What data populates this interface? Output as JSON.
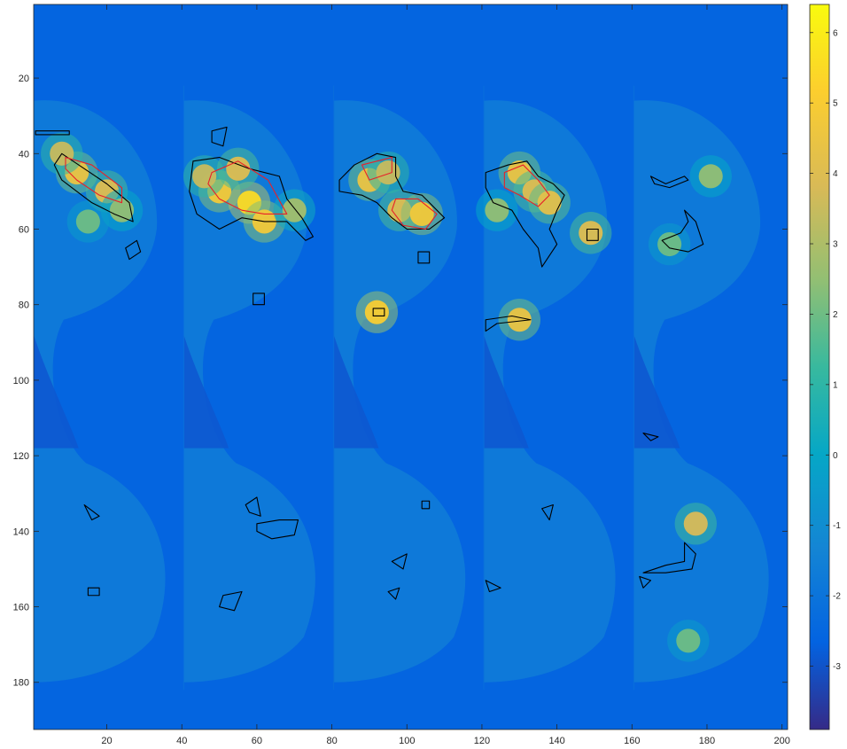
{
  "chart_data": {
    "type": "heatmap",
    "title": "",
    "xlabel": "",
    "ylabel": "",
    "xlim": [
      0.5,
      201.5
    ],
    "ylim": [
      0.5,
      192.5
    ],
    "y_reversed": true,
    "colormap": "parula",
    "xticks": [
      20,
      40,
      60,
      80,
      100,
      120,
      140,
      160,
      180,
      200
    ],
    "yticks": [
      20,
      40,
      60,
      80,
      100,
      120,
      140,
      160,
      180
    ],
    "colorbar": {
      "clim": [
        -3.9,
        6.4
      ],
      "ticks": [
        -3,
        -2,
        -1,
        0,
        1,
        2,
        3,
        4,
        5,
        6
      ]
    },
    "grid": false,
    "panels": [
      {
        "x0": 1,
        "x1": 40,
        "hotspots": [
          [
            12,
            45,
            4.5
          ],
          [
            20,
            50,
            4.0
          ],
          [
            8,
            40,
            3.5
          ],
          [
            24,
            55,
            2.5
          ],
          [
            15,
            58,
            2.0
          ]
        ],
        "black_contours": [
          [
            [
              1,
              34
            ],
            [
              10,
              34
            ],
            [
              10,
              35
            ],
            [
              1,
              35
            ]
          ],
          [
            [
              8,
              40
            ],
            [
              14,
              44
            ],
            [
              20,
              48
            ],
            [
              26,
              53
            ],
            [
              27,
              58
            ],
            [
              22,
              56
            ],
            [
              16,
              53
            ],
            [
              12,
              50
            ],
            [
              8,
              47
            ],
            [
              6,
              43
            ]
          ],
          [
            [
              25,
              65
            ],
            [
              28,
              63
            ],
            [
              29,
              66
            ],
            [
              26,
              68
            ]
          ],
          [
            [
              14,
              133
            ],
            [
              18,
              136
            ],
            [
              16,
              137
            ]
          ],
          [
            [
              15,
              155
            ],
            [
              18,
              155
            ],
            [
              18,
              157
            ],
            [
              15,
              157
            ]
          ]
        ],
        "red_contours": [
          [
            [
              9,
              41
            ],
            [
              16,
              43
            ],
            [
              24,
              49
            ],
            [
              24,
              53
            ],
            [
              18,
              51
            ],
            [
              12,
              47
            ],
            [
              9,
              44
            ]
          ]
        ]
      },
      {
        "x0": 41,
        "x1": 80,
        "hotspots": [
          [
            50,
            50,
            4.8
          ],
          [
            58,
            53,
            5.5
          ],
          [
            62,
            58,
            4.8
          ],
          [
            46,
            46,
            3.5
          ],
          [
            70,
            55,
            2.8
          ],
          [
            55,
            44,
            4.0
          ]
        ],
        "black_contours": [
          [
            [
              43,
              42
            ],
            [
              50,
              41
            ],
            [
              58,
              44
            ],
            [
              66,
              46
            ],
            [
              68,
              52
            ],
            [
              72,
              57
            ],
            [
              75,
              62
            ],
            [
              73,
              63
            ],
            [
              68,
              58
            ],
            [
              62,
              58
            ],
            [
              56,
              57
            ],
            [
              50,
              60
            ],
            [
              44,
              56
            ],
            [
              42,
              50
            ]
          ],
          [
            [
              48,
              34
            ],
            [
              52,
              33
            ],
            [
              51,
              38
            ],
            [
              48,
              37
            ]
          ],
          [
            [
              59,
              77
            ],
            [
              62,
              77
            ],
            [
              62,
              80
            ],
            [
              59,
              80
            ]
          ],
          [
            [
              57,
              133
            ],
            [
              60,
              131
            ],
            [
              61,
              136
            ],
            [
              58,
              135
            ]
          ],
          [
            [
              60,
              138
            ],
            [
              66,
              137
            ],
            [
              71,
              137
            ],
            [
              70,
              141
            ],
            [
              64,
              142
            ],
            [
              60,
              140
            ]
          ],
          [
            [
              51,
              157
            ],
            [
              56,
              156
            ],
            [
              54,
              161
            ],
            [
              50,
              160
            ]
          ]
        ],
        "red_contours": [
          [
            [
              48,
              45
            ],
            [
              55,
              42
            ],
            [
              63,
              47
            ],
            [
              68,
              56
            ],
            [
              62,
              56
            ],
            [
              56,
              55
            ],
            [
              50,
              52
            ],
            [
              47,
              48
            ]
          ]
        ]
      },
      {
        "x0": 81,
        "x1": 120,
        "hotspots": [
          [
            90,
            47,
            4.5
          ],
          [
            98,
            55,
            4.0
          ],
          [
            104,
            56,
            4.8
          ],
          [
            95,
            45,
            3.5
          ],
          [
            92,
            82,
            5.0
          ]
        ],
        "black_contours": [
          [
            [
              82,
              47
            ],
            [
              86,
              43
            ],
            [
              92,
              40
            ],
            [
              97,
              41
            ],
            [
              97,
              46
            ],
            [
              99,
              50
            ],
            [
              104,
              51
            ],
            [
              108,
              55
            ],
            [
              110,
              57
            ],
            [
              106,
              60
            ],
            [
              100,
              60
            ],
            [
              96,
              57
            ],
            [
              92,
              53
            ],
            [
              88,
              51
            ],
            [
              82,
              50
            ]
          ],
          [
            [
              91,
              81
            ],
            [
              94,
              81
            ],
            [
              94,
              83
            ],
            [
              91,
              83
            ]
          ],
          [
            [
              103,
              66
            ],
            [
              106,
              66
            ],
            [
              106,
              69
            ],
            [
              103,
              69
            ]
          ],
          [
            [
              104,
              132
            ],
            [
              106,
              132
            ],
            [
              106,
              134
            ],
            [
              104,
              134
            ]
          ],
          [
            [
              96,
              148
            ],
            [
              100,
              146
            ],
            [
              99,
              150
            ]
          ],
          [
            [
              95,
              156
            ],
            [
              98,
              155
            ],
            [
              97,
              158
            ]
          ]
        ],
        "red_contours": [
          [
            [
              88,
              43
            ],
            [
              96,
              41
            ],
            [
              96,
              45
            ],
            [
              90,
              47
            ]
          ],
          [
            [
              97,
              52
            ],
            [
              103,
              52
            ],
            [
              108,
              56
            ],
            [
              105,
              60
            ],
            [
              99,
              59
            ],
            [
              96,
              55
            ]
          ]
        ]
      },
      {
        "x0": 121,
        "x1": 160,
        "hotspots": [
          [
            130,
            45,
            4.5
          ],
          [
            134,
            50,
            4.0
          ],
          [
            138,
            53,
            4.2
          ],
          [
            130,
            84,
            4.5
          ],
          [
            149,
            61,
            4.0
          ],
          [
            124,
            55,
            2.5
          ]
        ],
        "black_contours": [
          [
            [
              121,
              45
            ],
            [
              127,
              43
            ],
            [
              132,
              42
            ],
            [
              135,
              46
            ],
            [
              139,
              48
            ],
            [
              142,
              51
            ],
            [
              140,
              55
            ],
            [
              138,
              60
            ],
            [
              140,
              64
            ],
            [
              136,
              70
            ],
            [
              135,
              65
            ],
            [
              131,
              60
            ],
            [
              128,
              55
            ],
            [
              123,
              53
            ],
            [
              121,
              49
            ]
          ],
          [
            [
              148,
              60
            ],
            [
              151,
              60
            ],
            [
              151,
              63
            ],
            [
              148,
              63
            ]
          ],
          [
            [
              121,
              84
            ],
            [
              128,
              83
            ],
            [
              133,
              84
            ],
            [
              124,
              85
            ],
            [
              121,
              87
            ]
          ],
          [
            [
              136,
              134
            ],
            [
              139,
              133
            ],
            [
              138,
              137
            ]
          ],
          [
            [
              121,
              153
            ],
            [
              125,
              155
            ],
            [
              122,
              156
            ]
          ]
        ],
        "red_contours": [
          [
            [
              126,
              45
            ],
            [
              131,
              43
            ],
            [
              135,
              47
            ],
            [
              138,
              51
            ],
            [
              135,
              54
            ],
            [
              130,
              51
            ],
            [
              126,
              49
            ]
          ]
        ]
      },
      {
        "x0": 161,
        "x1": 201,
        "hotspots": [
          [
            177,
            138,
            3.8
          ],
          [
            181,
            46,
            2.5
          ],
          [
            170,
            64,
            2.0
          ],
          [
            175,
            169,
            2.0
          ]
        ],
        "black_contours": [
          [
            [
              165,
              46
            ],
            [
              169,
              48
            ],
            [
              174,
              46
            ],
            [
              175,
              47
            ],
            [
              170,
              49
            ],
            [
              166,
              48
            ]
          ],
          [
            [
              174,
              55
            ],
            [
              177,
              58
            ],
            [
              179,
              64
            ],
            [
              175,
              66
            ],
            [
              170,
              65
            ],
            [
              168,
              63
            ],
            [
              173,
              61
            ],
            [
              175,
              58
            ]
          ],
          [
            [
              163,
              114
            ],
            [
              167,
              115
            ],
            [
              165,
              116
            ]
          ],
          [
            [
              174,
              143
            ],
            [
              177,
              146
            ],
            [
              176,
              150
            ],
            [
              169,
              151
            ],
            [
              163,
              151
            ],
            [
              169,
              149
            ],
            [
              174,
              148
            ]
          ],
          [
            [
              162,
              152
            ],
            [
              165,
              153
            ],
            [
              163,
              155
            ]
          ]
        ],
        "red_contours": []
      }
    ]
  }
}
